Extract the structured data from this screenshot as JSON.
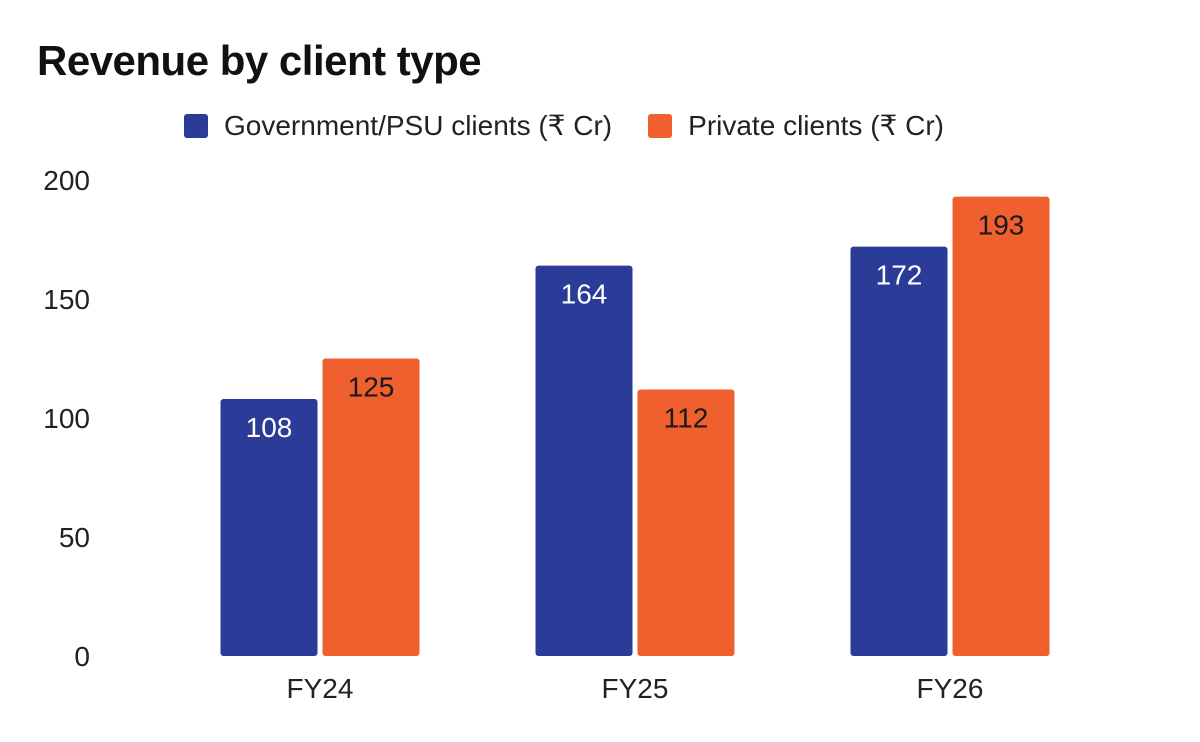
{
  "chart_data": {
    "type": "bar",
    "title": "Revenue by client type",
    "categories": [
      "FY24",
      "FY25",
      "FY26"
    ],
    "series": [
      {
        "name": "Government/PSU clients (₹ Cr)",
        "color": "#2b3b98",
        "label_color": "#ffffff",
        "values": [
          108,
          164,
          172
        ]
      },
      {
        "name": "Private clients (₹ Cr)",
        "color": "#f05f2e",
        "label_color": "#1a1a1a",
        "values": [
          125,
          112,
          193
        ]
      }
    ],
    "y_ticks": [
      "0",
      "50",
      "100",
      "150",
      "200"
    ],
    "ylim": [
      0,
      200
    ],
    "xlabel": "",
    "ylabel": "",
    "grid": false,
    "legend_position": "top"
  }
}
